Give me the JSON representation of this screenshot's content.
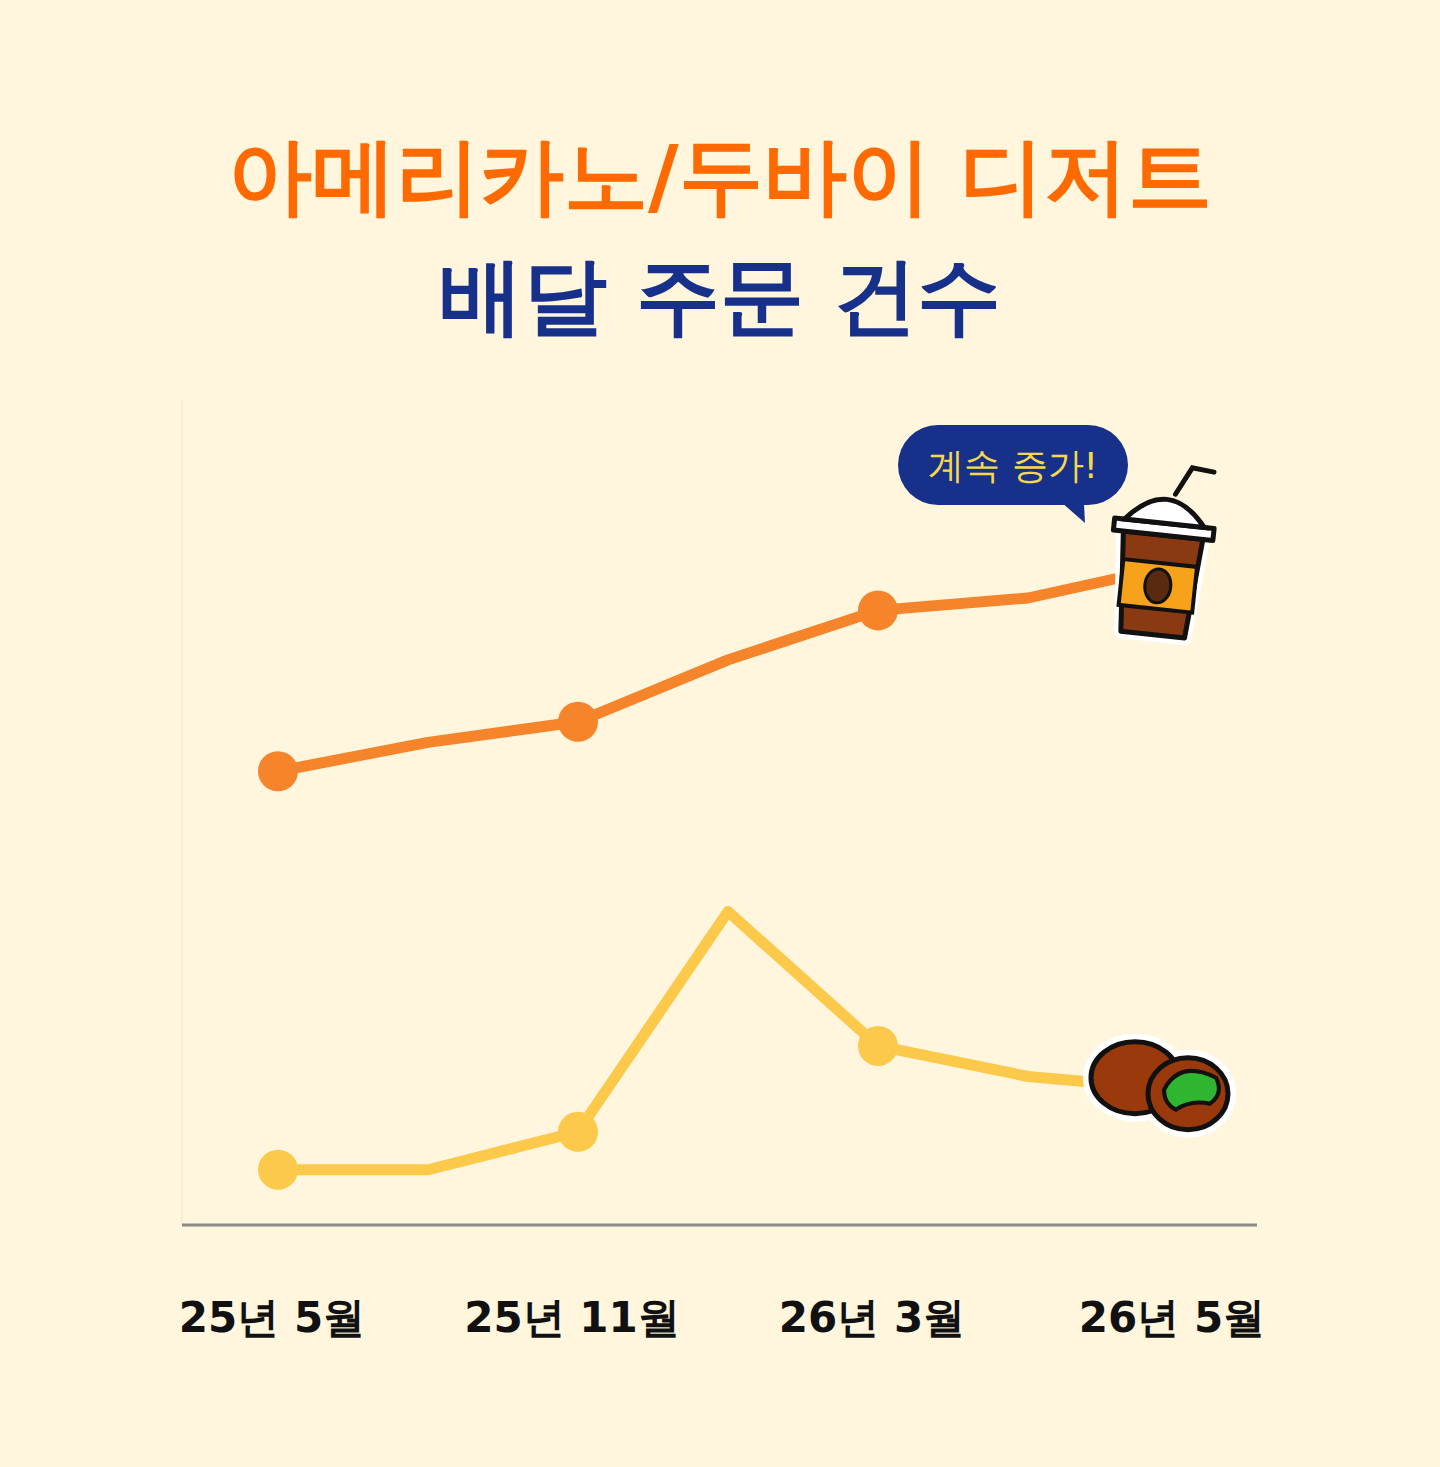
{
  "chart_data": {
    "type": "line",
    "title": "아메리카노/두바이 디저트",
    "subtitle": "배달 주문 건수",
    "annotation": "계속 증가!",
    "categories": [
      "25년 5월",
      null,
      "25년 11월",
      null,
      "26년 3월",
      null,
      "26년 5월"
    ],
    "series": [
      {
        "color": "#f5842b",
        "marker": "circle",
        "values": [
          55,
          58.5,
          61,
          68.5,
          74.5,
          76,
          80
        ]
      },
      {
        "color": "#fcc94a",
        "marker": "circle",
        "values": [
          6.7,
          6.7,
          11.3,
          38,
          21.7,
          18,
          16.4
        ]
      }
    ],
    "ylim": [
      0,
      100
    ],
    "tick_labels": "x",
    "grid": false
  }
}
